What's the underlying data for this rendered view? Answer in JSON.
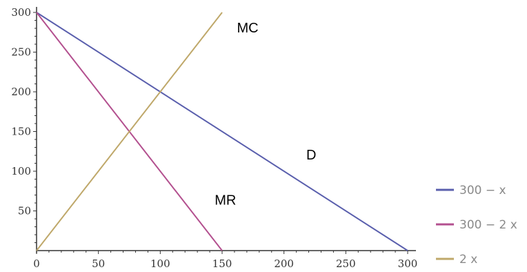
{
  "chart_data": {
    "type": "line",
    "xlim": [
      0,
      300
    ],
    "ylim": [
      0,
      300
    ],
    "x_ticks": [
      0,
      50,
      100,
      150,
      200,
      250,
      300
    ],
    "y_ticks": [
      50,
      100,
      150,
      200,
      250,
      300
    ],
    "x_tick_labels": [
      "0",
      "50",
      "100",
      "150",
      "200",
      "250",
      "300"
    ],
    "y_tick_labels": [
      "50",
      "100",
      "150",
      "200",
      "250",
      "300"
    ],
    "grid": false,
    "legend_position": "bottom-right",
    "series": [
      {
        "name": "300 − x",
        "color": "#5a5fad",
        "points": [
          [
            0,
            300
          ],
          [
            300,
            0
          ]
        ]
      },
      {
        "name": "300 − 2 x",
        "color": "#b3508f",
        "points": [
          [
            0,
            300
          ],
          [
            150,
            0
          ]
        ]
      },
      {
        "name": "2 x",
        "color": "#bfa86a",
        "points": [
          [
            0,
            0
          ],
          [
            150,
            300
          ]
        ]
      }
    ],
    "annotations": [
      {
        "text": "MC",
        "x": 162,
        "y": 275
      },
      {
        "text": "D",
        "x": 218,
        "y": 115
      },
      {
        "text": "MR",
        "x": 144,
        "y": 58
      }
    ]
  }
}
